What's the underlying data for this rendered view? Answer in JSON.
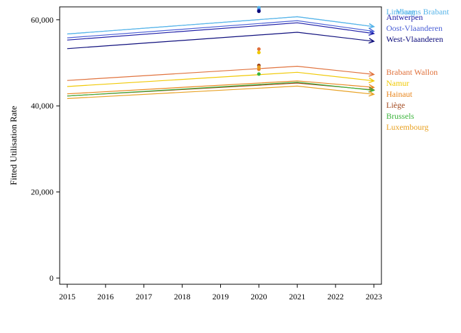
{
  "chart_data": {
    "type": "line",
    "ylabel": "Fitted Utilisation Rate",
    "xlabel": "",
    "title": "",
    "x_ticks": [
      "2015",
      "2016",
      "2017",
      "2018",
      "2019",
      "2020",
      "2021",
      "2022",
      "2023"
    ],
    "y_ticks": [
      "0",
      "20,000",
      "40,000",
      "60,000"
    ],
    "xlim": [
      2015,
      2023
    ],
    "ylim": [
      0,
      63000
    ],
    "grid": false,
    "legend_position": "right",
    "series": [
      {
        "name": "Limburg",
        "color": "#56b4e9",
        "x": [
          2015,
          2021,
          2023
        ],
        "y": [
          56700,
          60700,
          58400
        ],
        "point_x": 2020,
        "point_y": 62800
      },
      {
        "name": "Vlaams Brabant",
        "color": "#56b4e9",
        "x": [
          2015,
          2021,
          2023
        ],
        "y": [
          56700,
          60700,
          58400
        ],
        "point_x": 2020,
        "point_y": 62500
      },
      {
        "name": "Antwerpen",
        "color": "#1a1aa6",
        "x": [
          2015,
          2021,
          2023
        ],
        "y": [
          55300,
          59300,
          56800
        ],
        "point_x": 2020,
        "point_y": 62000
      },
      {
        "name": "Oost-Vlaanderen",
        "color": "#4a5fd6",
        "x": [
          2015,
          2021,
          2023
        ],
        "y": [
          55800,
          59800,
          57300
        ],
        "point_x": 2020,
        "point_y": 62200
      },
      {
        "name": "West-Vlaanderen",
        "color": "#0a0a7a",
        "x": [
          2015,
          2021,
          2023
        ],
        "y": [
          53300,
          57100,
          55000
        ],
        "point_x": 2020,
        "point_y": 62000
      },
      {
        "name": "Brabant Wallon",
        "color": "#e0703a",
        "x": [
          2015,
          2021,
          2023
        ],
        "y": [
          45900,
          49200,
          47300
        ],
        "point_x": 2020,
        "point_y": 53200
      },
      {
        "name": "Namur",
        "color": "#f0c800",
        "x": [
          2015,
          2021,
          2023
        ],
        "y": [
          44500,
          47800,
          45800
        ],
        "point_x": 2020,
        "point_y": 52400
      },
      {
        "name": "Hainaut",
        "color": "#e8841a",
        "x": [
          2015,
          2021,
          2023
        ],
        "y": [
          42800,
          45800,
          44300
        ],
        "point_x": 2020,
        "point_y": 48500
      },
      {
        "name": "Liège",
        "color": "#a0451a",
        "x": [
          2015,
          2021,
          2023
        ],
        "y": [
          42300,
          45300,
          43700
        ],
        "point_x": 2020,
        "point_y": 49400
      },
      {
        "name": "Brussels",
        "color": "#3cb43c",
        "x": [
          2015,
          2021,
          2023
        ],
        "y": [
          42300,
          45500,
          43600
        ],
        "point_x": 2020,
        "point_y": 47400
      },
      {
        "name": "Luxembourg",
        "color": "#e8a020",
        "x": [
          2015,
          2021,
          2023
        ],
        "y": [
          41700,
          44600,
          42700
        ],
        "point_x": 2020,
        "point_y": 49000
      }
    ]
  }
}
